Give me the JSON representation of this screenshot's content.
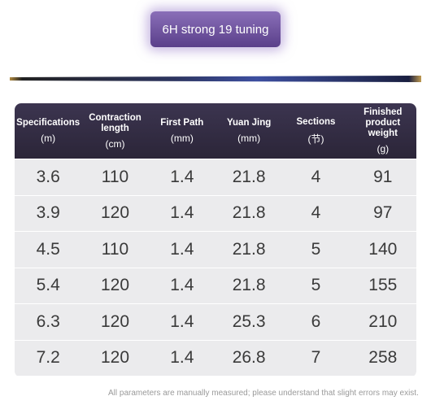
{
  "title": "6H strong 19 tuning",
  "table": {
    "header": [
      {
        "name": "Specifications",
        "unit": "(m)"
      },
      {
        "name": "Contraction length",
        "unit": "(cm)"
      },
      {
        "name": "First Path",
        "unit": "(mm)"
      },
      {
        "name": "Yuan Jing",
        "unit": "(mm)"
      },
      {
        "name": "Sections",
        "unit": "(节)"
      },
      {
        "name": "Finished product weight",
        "unit": "(g)"
      }
    ],
    "rows": [
      [
        "3.6",
        "110",
        "1.4",
        "21.8",
        "4",
        "91"
      ],
      [
        "3.9",
        "120",
        "1.4",
        "21.8",
        "4",
        "97"
      ],
      [
        "4.5",
        "110",
        "1.4",
        "21.8",
        "5",
        "140"
      ],
      [
        "5.4",
        "120",
        "1.4",
        "21.8",
        "5",
        "155"
      ],
      [
        "6.3",
        "120",
        "1.4",
        "25.3",
        "6",
        "210"
      ],
      [
        "7.2",
        "120",
        "1.4",
        "26.8",
        "7",
        "258"
      ]
    ]
  },
  "note": "All parameters are manually measured; please understand that slight errors may exist."
}
